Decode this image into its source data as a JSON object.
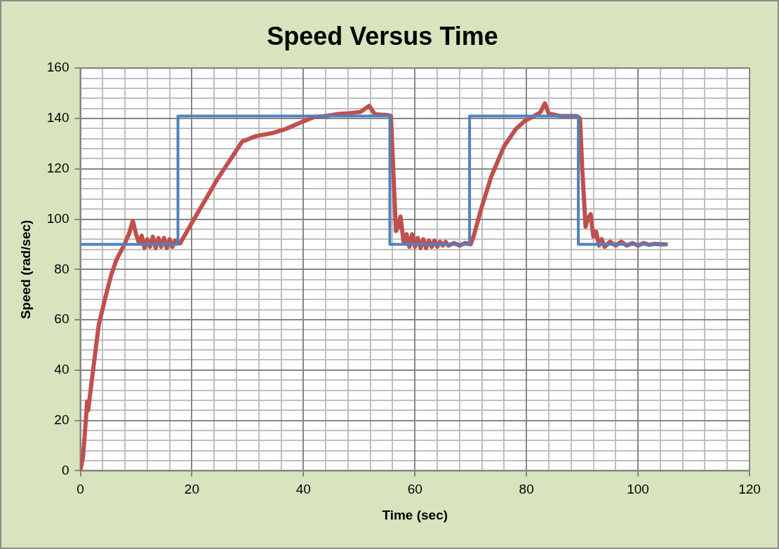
{
  "chart_data": {
    "type": "line",
    "title": "Speed Versus Time",
    "xlabel": "Time (sec)",
    "ylabel": "Speed (rad/sec)",
    "xlim": [
      0,
      120
    ],
    "xticks": [
      0,
      20,
      40,
      60,
      80,
      100,
      120
    ],
    "ylim": [
      0,
      160
    ],
    "yticks": [
      0,
      20,
      40,
      60,
      80,
      100,
      120,
      140,
      160
    ],
    "grid": true,
    "legend": false,
    "marker": "none",
    "line_style": "solid",
    "series": [
      {
        "color": "#4f81bd",
        "x": [
          0,
          17.5,
          17.5,
          55.5,
          55.5,
          69.8,
          69.8,
          89.3,
          89.3,
          105
        ],
        "values": [
          90,
          90,
          141,
          141,
          90,
          90,
          141,
          141,
          90,
          90
        ]
      },
      {
        "color": "#c0504d",
        "x": [
          0,
          0.5,
          1.1,
          1.2,
          1.4,
          2,
          3.3,
          4.5,
          5.5,
          6.5,
          7.7,
          8.7,
          9.4,
          10,
          10.5,
          11,
          11.5,
          12,
          12.5,
          13,
          13.5,
          14,
          14.5,
          15,
          15.5,
          16,
          16.5,
          17,
          17.9,
          20.2,
          22.5,
          24.6,
          27,
          29,
          31.5,
          34.6,
          36.8,
          39.8,
          42,
          44,
          46.3,
          48,
          50.2,
          51.8,
          52.8,
          54,
          55,
          55.7,
          56.1,
          56.6,
          57,
          57.4,
          58,
          58.5,
          59,
          59.5,
          60,
          60.5,
          61,
          61.5,
          62,
          62.5,
          63,
          63.5,
          64,
          64.5,
          65,
          65.5,
          66,
          67,
          68,
          69,
          70,
          70.5,
          72,
          73.7,
          76,
          78.1,
          79.8,
          81.1,
          82.5,
          83.3,
          84,
          85,
          86,
          87,
          88,
          89,
          89.6,
          90,
          90.6,
          91,
          91.5,
          92,
          92.5,
          93,
          93.5,
          94,
          95,
          96,
          97,
          98,
          99,
          100,
          101,
          102,
          103,
          104,
          105
        ],
        "values": [
          0,
          6,
          23.6,
          27.5,
          24,
          35,
          58,
          69,
          77.6,
          84,
          89,
          94,
          99.3,
          94,
          90.5,
          93.4,
          88.5,
          92,
          89,
          93,
          88.5,
          92.5,
          89,
          92.5,
          88.5,
          92,
          89,
          91.5,
          90.4,
          99.3,
          108,
          116,
          124,
          130.8,
          133,
          134.3,
          135.8,
          138.7,
          140.6,
          141,
          141.8,
          142,
          142.6,
          145,
          141.7,
          141.5,
          141.4,
          141,
          120,
          95.3,
          97,
          101,
          90.4,
          94,
          89,
          94,
          89,
          92.5,
          88.5,
          92,
          88.5,
          91.5,
          89,
          91.5,
          89,
          91,
          89.5,
          91,
          89.5,
          90.5,
          89.5,
          90.5,
          90,
          93,
          105,
          117,
          129,
          135.8,
          139.2,
          140.6,
          142.5,
          146,
          142,
          141.5,
          141,
          141,
          141,
          141,
          140,
          120,
          97,
          100,
          102,
          93,
          95,
          89.5,
          92,
          89,
          91,
          89.5,
          91,
          89.5,
          90.5,
          89.5,
          90.5,
          89.8,
          90.2,
          90,
          90
        ]
      }
    ]
  }
}
